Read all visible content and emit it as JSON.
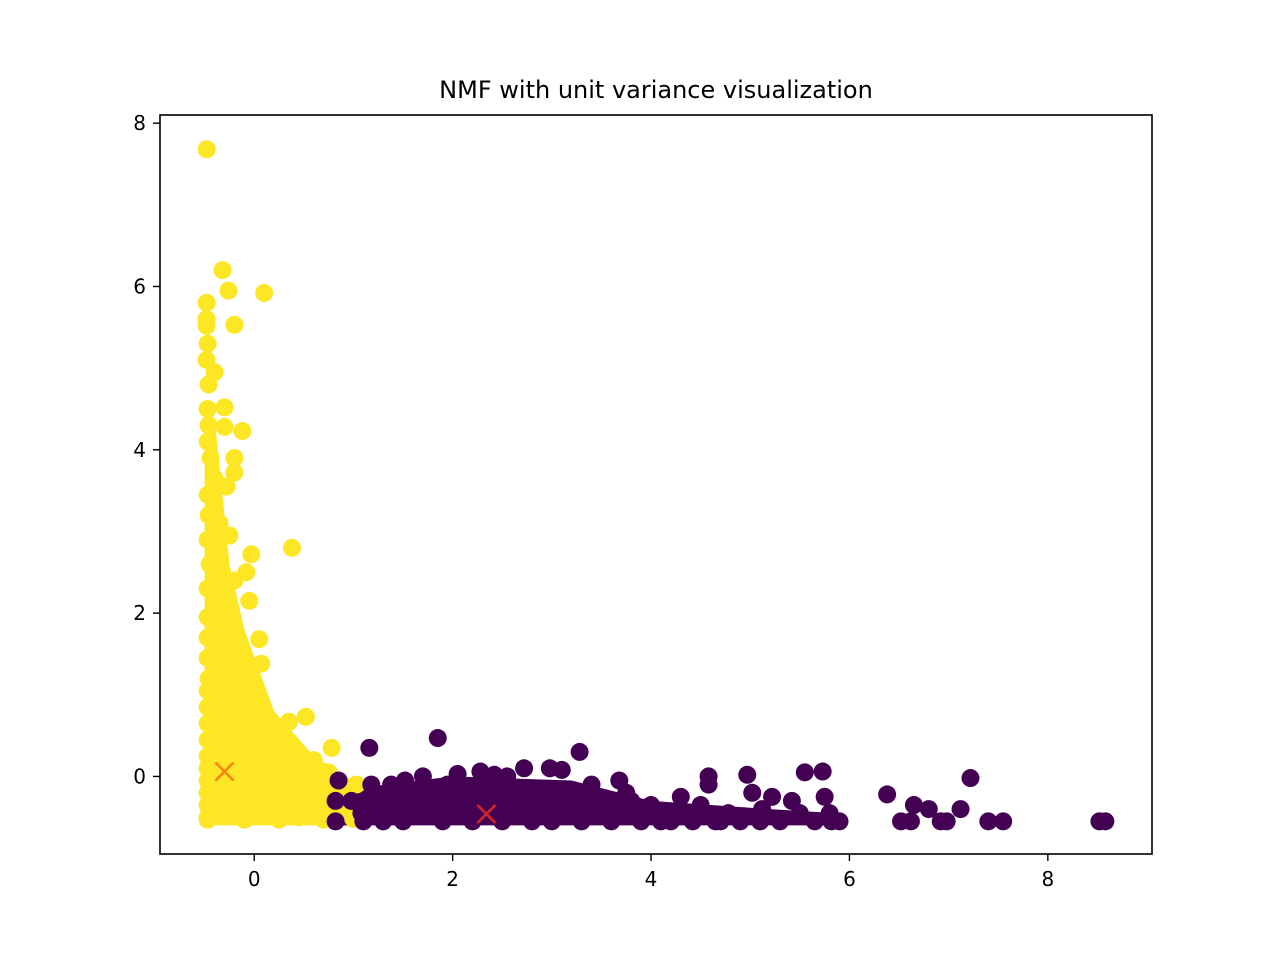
{
  "chart_data": {
    "type": "scatter",
    "title": "NMF with unit variance visualization",
    "xlabel": "",
    "ylabel": "",
    "xlim": [
      -0.95,
      9.05
    ],
    "ylim": [
      -0.95,
      8.1
    ],
    "xticks": [
      0,
      2,
      4,
      6,
      8
    ],
    "yticks": [
      0,
      2,
      4,
      6,
      8
    ],
    "grid": false,
    "legend": "none",
    "colors": {
      "cluster_0": "#fde725",
      "cluster_1": "#440154",
      "centroid_0": "#ff7f0e",
      "centroid_1": "#d62728"
    },
    "series": [
      {
        "color_key": "cluster_0",
        "marker": "circle",
        "points": [
          [
            -0.48,
            7.68
          ],
          [
            -0.32,
            6.2
          ],
          [
            -0.26,
            5.95
          ],
          [
            0.1,
            5.92
          ],
          [
            -0.48,
            5.8
          ],
          [
            -0.2,
            5.53
          ],
          [
            -0.48,
            5.6
          ],
          [
            -0.48,
            5.52
          ],
          [
            -0.47,
            5.3
          ],
          [
            -0.48,
            5.1
          ],
          [
            -0.4,
            4.95
          ],
          [
            -0.46,
            4.8
          ],
          [
            -0.3,
            4.52
          ],
          [
            -0.47,
            4.5
          ],
          [
            -0.46,
            4.3
          ],
          [
            -0.3,
            4.28
          ],
          [
            -0.12,
            4.23
          ],
          [
            -0.2,
            3.9
          ],
          [
            -0.2,
            3.72
          ],
          [
            -0.47,
            4.1
          ],
          [
            -0.44,
            3.9
          ],
          [
            -0.4,
            3.65
          ],
          [
            -0.28,
            3.55
          ],
          [
            -0.47,
            3.45
          ],
          [
            -0.46,
            3.2
          ],
          [
            -0.35,
            3.1
          ],
          [
            -0.25,
            2.95
          ],
          [
            -0.47,
            2.9
          ],
          [
            0.38,
            2.8
          ],
          [
            -0.03,
            2.72
          ],
          [
            -0.45,
            2.6
          ],
          [
            -0.08,
            2.5
          ],
          [
            -0.2,
            2.4
          ],
          [
            -0.47,
            2.3
          ],
          [
            -0.05,
            2.15
          ],
          [
            -0.3,
            2.1
          ],
          [
            -0.47,
            1.95
          ],
          [
            -0.25,
            1.8
          ],
          [
            -0.47,
            1.7
          ],
          [
            0.05,
            1.68
          ],
          [
            -0.15,
            1.6
          ],
          [
            -0.47,
            1.45
          ],
          [
            0.07,
            1.38
          ],
          [
            -0.3,
            1.3
          ],
          [
            -0.46,
            1.2
          ],
          [
            -0.1,
            1.15
          ],
          [
            -0.47,
            1.05
          ],
          [
            0.05,
            0.95
          ],
          [
            -0.25,
            0.9
          ],
          [
            -0.47,
            0.85
          ],
          [
            0.35,
            0.67
          ],
          [
            0.52,
            0.73
          ],
          [
            -0.1,
            0.7
          ],
          [
            -0.47,
            0.65
          ],
          [
            0.2,
            0.5
          ],
          [
            -0.3,
            0.5
          ],
          [
            -0.47,
            0.45
          ],
          [
            0.05,
            0.4
          ],
          [
            0.78,
            0.35
          ],
          [
            0.35,
            0.3
          ],
          [
            -0.2,
            0.3
          ],
          [
            -0.47,
            0.25
          ],
          [
            0.6,
            0.2
          ],
          [
            0.1,
            0.15
          ],
          [
            -0.47,
            0.1
          ],
          [
            0.4,
            0.05
          ],
          [
            0.75,
            0.05
          ],
          [
            -0.15,
            0.0
          ],
          [
            -0.47,
            -0.05
          ],
          [
            0.25,
            -0.1
          ],
          [
            1.03,
            -0.1
          ],
          [
            0.55,
            -0.15
          ],
          [
            -0.47,
            -0.2
          ],
          [
            0.0,
            -0.25
          ],
          [
            0.85,
            -0.25
          ],
          [
            0.35,
            -0.3
          ],
          [
            -0.47,
            -0.35
          ],
          [
            0.65,
            -0.35
          ],
          [
            -0.2,
            -0.4
          ],
          [
            0.15,
            -0.45
          ],
          [
            0.9,
            -0.45
          ],
          [
            -0.47,
            -0.5
          ],
          [
            0.45,
            -0.5
          ],
          [
            1.0,
            -0.52
          ],
          [
            -0.1,
            -0.53
          ],
          [
            0.7,
            -0.53
          ],
          [
            -0.47,
            -0.53
          ],
          [
            0.25,
            -0.53
          ]
        ]
      },
      {
        "color_key": "cluster_1",
        "marker": "circle",
        "points": [
          [
            8.58,
            -0.55
          ],
          [
            8.52,
            -0.55
          ],
          [
            7.55,
            -0.55
          ],
          [
            7.4,
            -0.55
          ],
          [
            7.22,
            -0.02
          ],
          [
            7.12,
            -0.4
          ],
          [
            6.98,
            -0.55
          ],
          [
            6.92,
            -0.55
          ],
          [
            6.8,
            -0.4
          ],
          [
            6.65,
            -0.35
          ],
          [
            6.62,
            -0.55
          ],
          [
            6.52,
            -0.55
          ],
          [
            6.38,
            -0.22
          ],
          [
            5.82,
            -0.55
          ],
          [
            5.8,
            -0.45
          ],
          [
            5.75,
            -0.25
          ],
          [
            5.73,
            0.06
          ],
          [
            5.55,
            0.05
          ],
          [
            5.65,
            -0.55
          ],
          [
            5.5,
            -0.45
          ],
          [
            5.42,
            -0.3
          ],
          [
            5.3,
            -0.55
          ],
          [
            5.22,
            -0.25
          ],
          [
            5.12,
            -0.4
          ],
          [
            5.02,
            -0.2
          ],
          [
            4.97,
            0.02
          ],
          [
            4.9,
            -0.55
          ],
          [
            4.78,
            -0.45
          ],
          [
            4.65,
            -0.55
          ],
          [
            4.58,
            -0.1
          ],
          [
            4.58,
            0.0
          ],
          [
            4.5,
            -0.35
          ],
          [
            4.42,
            -0.55
          ],
          [
            4.3,
            -0.25
          ],
          [
            4.25,
            -0.45
          ],
          [
            4.1,
            -0.55
          ],
          [
            4.0,
            -0.35
          ],
          [
            3.9,
            -0.55
          ],
          [
            3.75,
            -0.2
          ],
          [
            3.68,
            -0.05
          ],
          [
            3.55,
            -0.45
          ],
          [
            3.4,
            -0.1
          ],
          [
            3.28,
            0.3
          ],
          [
            3.2,
            -0.35
          ],
          [
            3.1,
            0.08
          ],
          [
            3.0,
            -0.55
          ],
          [
            2.98,
            0.1
          ],
          [
            2.85,
            -0.25
          ],
          [
            2.72,
            0.1
          ],
          [
            2.62,
            -0.45
          ],
          [
            2.55,
            0.0
          ],
          [
            2.42,
            0.02
          ],
          [
            2.3,
            -0.2
          ],
          [
            2.28,
            0.06
          ],
          [
            2.15,
            -0.4
          ],
          [
            2.05,
            0.03
          ],
          [
            1.95,
            -0.1
          ],
          [
            1.85,
            0.47
          ],
          [
            1.78,
            -0.3
          ],
          [
            1.7,
            0.0
          ],
          [
            1.6,
            -0.45
          ],
          [
            1.52,
            -0.05
          ],
          [
            1.45,
            -0.25
          ],
          [
            1.38,
            -0.1
          ],
          [
            1.3,
            -0.55
          ],
          [
            1.25,
            -0.3
          ],
          [
            1.18,
            -0.1
          ],
          [
            1.16,
            0.35
          ],
          [
            1.08,
            -0.45
          ],
          [
            0.98,
            -0.3
          ],
          [
            0.85,
            -0.05
          ],
          [
            0.82,
            -0.55
          ],
          [
            0.82,
            -0.3
          ],
          [
            1.1,
            -0.55
          ],
          [
            1.5,
            -0.55
          ],
          [
            1.9,
            -0.55
          ],
          [
            2.2,
            -0.55
          ],
          [
            2.5,
            -0.55
          ],
          [
            2.8,
            -0.55
          ],
          [
            3.3,
            -0.55
          ],
          [
            3.6,
            -0.55
          ],
          [
            4.2,
            -0.55
          ],
          [
            4.7,
            -0.55
          ],
          [
            5.1,
            -0.55
          ],
          [
            5.9,
            -0.55
          ],
          [
            3.8,
            -0.3
          ],
          [
            3.45,
            -0.25
          ],
          [
            2.9,
            -0.4
          ]
        ]
      }
    ],
    "centroids": [
      {
        "color_key": "centroid_0",
        "marker": "x",
        "x": -0.3,
        "y": 0.06
      },
      {
        "color_key": "centroid_1",
        "marker": "x",
        "x": 2.34,
        "y": -0.46
      }
    ]
  }
}
